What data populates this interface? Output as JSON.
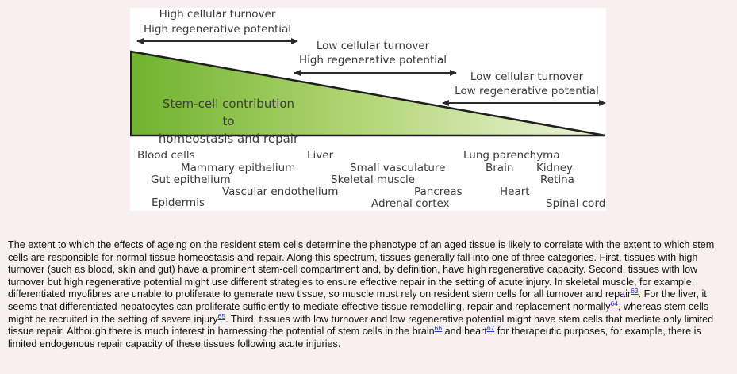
{
  "figure": {
    "arrows": [
      {
        "line1": "High cellular turnover",
        "line2": "High regenerative potential"
      },
      {
        "line1": "Low cellular turnover",
        "line2": "High regenerative potential"
      },
      {
        "line1": "Low cellular turnover",
        "line2": "Low regenerative potential"
      }
    ],
    "wedge_label_line1": "Stem-cell contribution to",
    "wedge_label_line2": "homeostasis and repair",
    "tissues": {
      "blood_cells": "Blood cells",
      "mammary_epithelium": "Mammary epithelium",
      "gut_epithelium": "Gut epithelium",
      "epidermis": "Epidermis",
      "vascular_endothelium": "Vascular endothelium",
      "liver": "Liver",
      "small_vasculature": "Small vasculature",
      "skeletal_muscle": "Skeletal muscle",
      "pancreas": "Pancreas",
      "adrenal_cortex": "Adrenal cortex",
      "lung_parenchyma": "Lung parenchyma",
      "brain": "Brain",
      "kidney": "Kidney",
      "retina": "Retina",
      "heart": "Heart",
      "spinal_cord": "Spinal cord"
    },
    "colors": {
      "wedge_dark": "#6fb32e",
      "wedge_light": "#e8f2cf",
      "arrow": "#2b2b2b"
    }
  },
  "caption": {
    "part1": "The extent to which the effects of ageing on the resident stem cells determine the phenotype of an aged tissue is likely to correlate with the extent to which stem cells are responsible for normal tissue homeostasis and repair. Along this spectrum, tissues generally fall into one of three categories. First, tissues with high turnover (such as blood, skin and gut) have a prominent stem-cell compartment and, by definition, have high regenerative capacity. Second, tissues with low turnover but high regenerative potential might use different strategies to ensure effective repair in the setting of acute injury. In skeletal muscle, for example, differentiated myofibres are unable to proliferate to generate new tissue, so muscle must rely on resident stem cells for all turnover and repair",
    "ref1": "63",
    "part2": ". For the liver, it seems that differentiated hepatocytes can proliferate sufficiently to mediate effective tissue remodelling, repair and replacement normally",
    "ref2": "64",
    "part3": ", whereas stem cells might be recruited in the setting of severe injury",
    "ref3": "65",
    "part4": ". Third, tissues with low turnover and low regenerative potential might have stem cells that mediate only limited tissue repair. Although there is much interest in harnessing the potential of stem cells in the brain",
    "ref4": "66",
    "part5": " and heart",
    "ref5": "67",
    "part6": " for therapeutic purposes, for example, there is limited endogenous repair capacity of these tissues following acute injuries."
  }
}
